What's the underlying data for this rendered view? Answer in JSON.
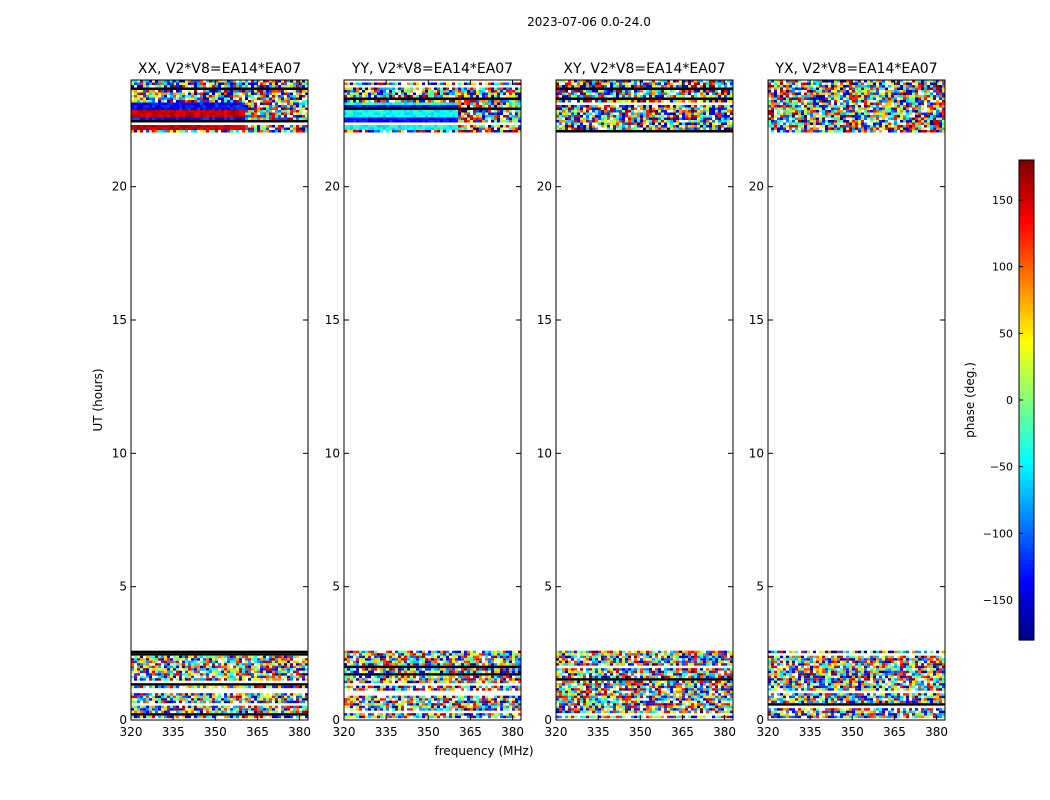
{
  "chart_data": {
    "type": "heatmap",
    "suptitle": "2023-07-06 0.0-24.0",
    "xlabel": "frequency (MHz)",
    "ylabel": "UT (hours)",
    "xlim": [
      320,
      383
    ],
    "ylim": [
      0,
      24
    ],
    "xticks": [
      "320",
      "335",
      "350",
      "365",
      "380"
    ],
    "yticks": [
      "0",
      "5",
      "10",
      "15",
      "20"
    ],
    "ytick_values": [
      0,
      5,
      10,
      15,
      20
    ],
    "xtick_values": [
      320,
      335,
      350,
      365,
      380
    ],
    "panels": [
      {
        "title": "XX, V2*V8=EA14*EA07",
        "upper_band_mode": "coherent_warm_cool"
      },
      {
        "title": "YY, V2*V8=EA14*EA07",
        "upper_band_mode": "coherent_cool"
      },
      {
        "title": "XY, V2*V8=EA14*EA07",
        "upper_band_mode": "noise"
      },
      {
        "title": "YX, V2*V8=EA14*EA07",
        "upper_band_mode": "noise"
      }
    ],
    "data_time_ranges_hours": [
      [
        0,
        2.6
      ],
      [
        22.0,
        24.0
      ]
    ],
    "colorbar": {
      "label": "phase (deg.)",
      "range": [
        -180,
        180
      ],
      "ticks": [
        "−150",
        "−100",
        "−50",
        "0",
        "50",
        "100",
        "150"
      ],
      "tick_values": [
        -150,
        -100,
        -50,
        0,
        50,
        100,
        150
      ],
      "colormap": "jet"
    }
  }
}
